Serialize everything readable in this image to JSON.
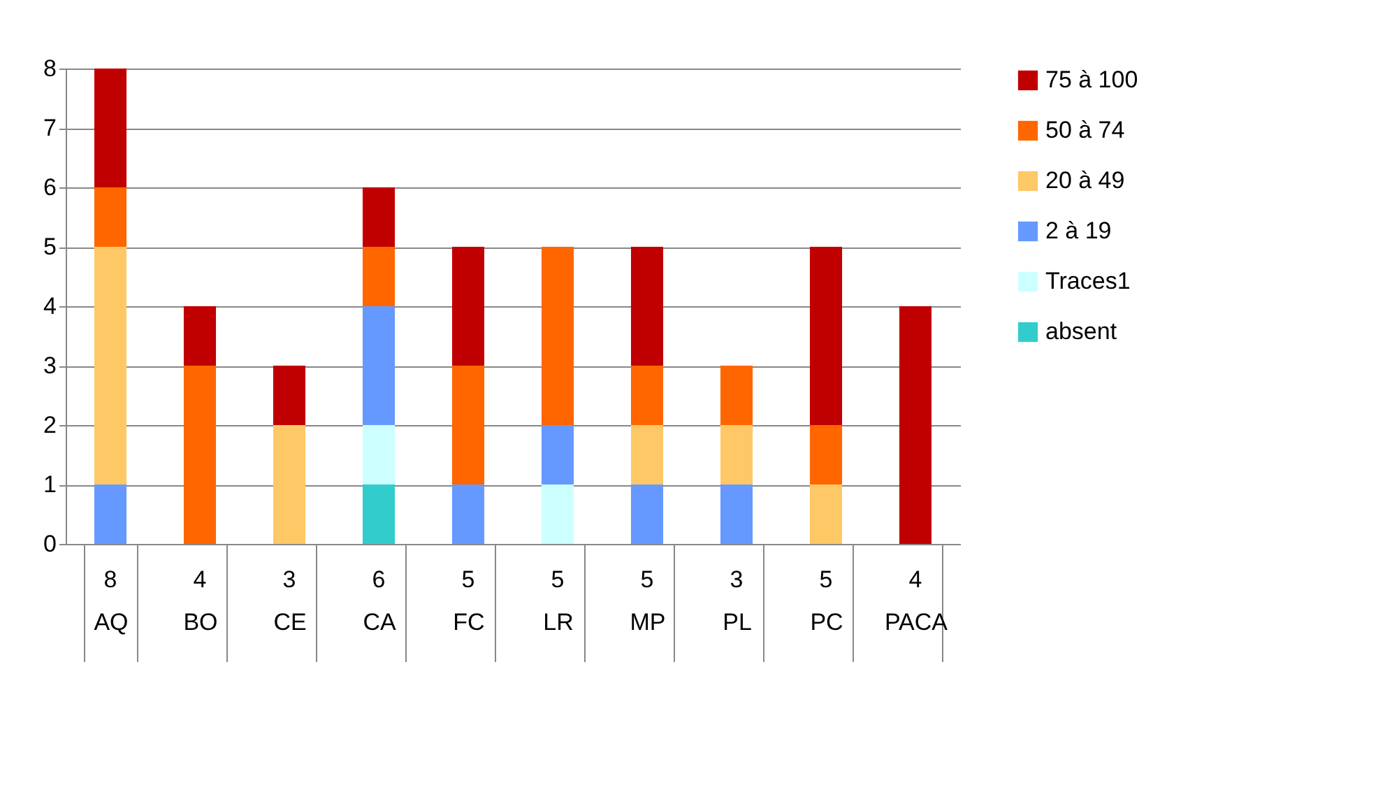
{
  "chart_data": {
    "type": "bar",
    "stacked": true,
    "categories": [
      "AQ",
      "BO",
      "CE",
      "CA",
      "FC",
      "LR",
      "MP",
      "PL",
      "PC",
      "PACA"
    ],
    "series": [
      {
        "name": "absent",
        "color": "#33cccc",
        "values": [
          0,
          0,
          0,
          1,
          0,
          0,
          0,
          0,
          0,
          0
        ]
      },
      {
        "name": "Traces1",
        "color": "#ccffff",
        "values": [
          0,
          0,
          0,
          1,
          0,
          1,
          0,
          0,
          0,
          0
        ]
      },
      {
        "name": "2 à 19",
        "color": "#6699ff",
        "values": [
          1,
          0,
          0,
          2,
          1,
          1,
          1,
          1,
          0,
          0
        ]
      },
      {
        "name": "20 à 49",
        "color": "#ffc866",
        "values": [
          4,
          0,
          2,
          0,
          0,
          0,
          1,
          1,
          1,
          0
        ]
      },
      {
        "name": "50 à 74",
        "color": "#ff6600",
        "values": [
          1,
          3,
          0,
          1,
          2,
          3,
          1,
          1,
          1,
          0
        ]
      },
      {
        "name": "75 à 100",
        "color": "#c00000",
        "values": [
          2,
          1,
          1,
          1,
          2,
          0,
          2,
          0,
          3,
          4
        ]
      }
    ],
    "totals": [
      "8",
      "4",
      "3",
      "6",
      "5",
      "5",
      "5",
      "3",
      "5",
      "4"
    ],
    "ylim": [
      0,
      8
    ],
    "yticks": [
      0,
      1,
      2,
      3,
      4,
      5,
      6,
      7,
      8
    ],
    "grid": "y",
    "legend": "right"
  }
}
